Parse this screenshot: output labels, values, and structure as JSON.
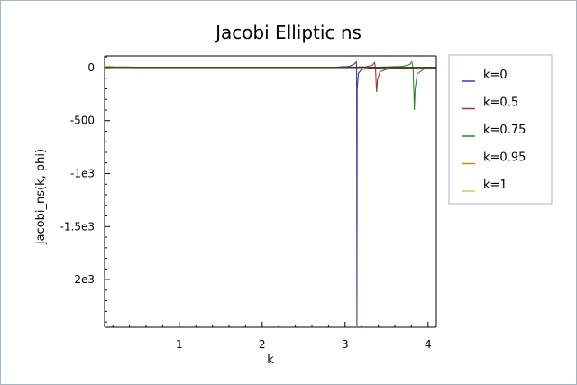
{
  "chart_data": {
    "type": "line",
    "title": "Jacobi Elliptic ns",
    "xlabel": "k",
    "ylabel": "jacobi_ns(k, phi)",
    "xlim": [
      0.1,
      4.1
    ],
    "ylim": [
      -2450,
      110
    ],
    "x_ticks": [
      1,
      2,
      3,
      4
    ],
    "x_tick_labels": [
      "1",
      "2",
      "3",
      "4"
    ],
    "y_ticks": [
      0,
      -500,
      -1000,
      -1500,
      -2000
    ],
    "y_tick_labels": [
      "0",
      "-500",
      "-1e3",
      "-1.5e3",
      "-2e3"
    ],
    "grid": false,
    "legend_position": "right",
    "series": [
      {
        "name": "k=0",
        "color": "#3b3da6",
        "points": [
          [
            0.1,
            10.0
          ],
          [
            0.5,
            2.1
          ],
          [
            1.0,
            1.2
          ],
          [
            1.57,
            1.0
          ],
          [
            2.0,
            1.1
          ],
          [
            2.5,
            1.7
          ],
          [
            2.9,
            4.1
          ],
          [
            3.05,
            10.9
          ],
          [
            3.11,
            31.9
          ],
          [
            3.136,
            54
          ],
          [
            3.139,
            8
          ],
          [
            3.1425,
            -2440
          ],
          [
            3.146,
            -200
          ],
          [
            3.16,
            -55
          ],
          [
            3.2,
            -17.2
          ],
          [
            3.35,
            -4.8
          ],
          [
            3.6,
            -2.3
          ],
          [
            4.1,
            -1.2
          ]
        ]
      },
      {
        "name": "k=0.5",
        "color": "#a83232",
        "points": [
          [
            0.1,
            10.0
          ],
          [
            0.5,
            2.1
          ],
          [
            1.0,
            1.2
          ],
          [
            1.7,
            1.0
          ],
          [
            2.5,
            1.4
          ],
          [
            3.0,
            2.8
          ],
          [
            3.25,
            7.5
          ],
          [
            3.33,
            22
          ],
          [
            3.355,
            48
          ],
          [
            3.36,
            30
          ],
          [
            3.367,
            -5
          ],
          [
            3.375,
            -160
          ],
          [
            3.38,
            -230
          ],
          [
            3.39,
            -120
          ],
          [
            3.42,
            -40
          ],
          [
            3.5,
            -15
          ],
          [
            3.7,
            -4.5
          ],
          [
            4.1,
            -1.8
          ]
        ]
      },
      {
        "name": "k=0.75",
        "color": "#2a8a2a",
        "points": [
          [
            0.1,
            10.0
          ],
          [
            0.5,
            2.1
          ],
          [
            1.0,
            1.2
          ],
          [
            1.9,
            1.0
          ],
          [
            2.8,
            1.5
          ],
          [
            3.4,
            3.8
          ],
          [
            3.7,
            12
          ],
          [
            3.78,
            30
          ],
          [
            3.805,
            55
          ],
          [
            3.81,
            30
          ],
          [
            3.82,
            -20
          ],
          [
            3.83,
            -250
          ],
          [
            3.835,
            -400
          ],
          [
            3.845,
            -200
          ],
          [
            3.87,
            -60
          ],
          [
            3.95,
            -15
          ],
          [
            4.1,
            -5
          ]
        ]
      },
      {
        "name": "k=0.95",
        "color": "#d08c10",
        "points": [
          [
            0.1,
            10.0
          ],
          [
            0.5,
            2.1
          ],
          [
            1.0,
            1.2
          ],
          [
            2.0,
            1.0
          ],
          [
            3.0,
            1.2
          ],
          [
            3.5,
            1.6
          ],
          [
            3.9,
            2.3
          ],
          [
            4.1,
            3.0
          ]
        ]
      },
      {
        "name": "k=1",
        "color": "#b8d838",
        "points": [
          [
            0.1,
            10.0
          ],
          [
            0.5,
            2.1
          ],
          [
            1.0,
            1.3
          ],
          [
            2.0,
            1.04
          ],
          [
            3.0,
            1.0
          ],
          [
            4.1,
            1.0
          ]
        ]
      }
    ]
  }
}
